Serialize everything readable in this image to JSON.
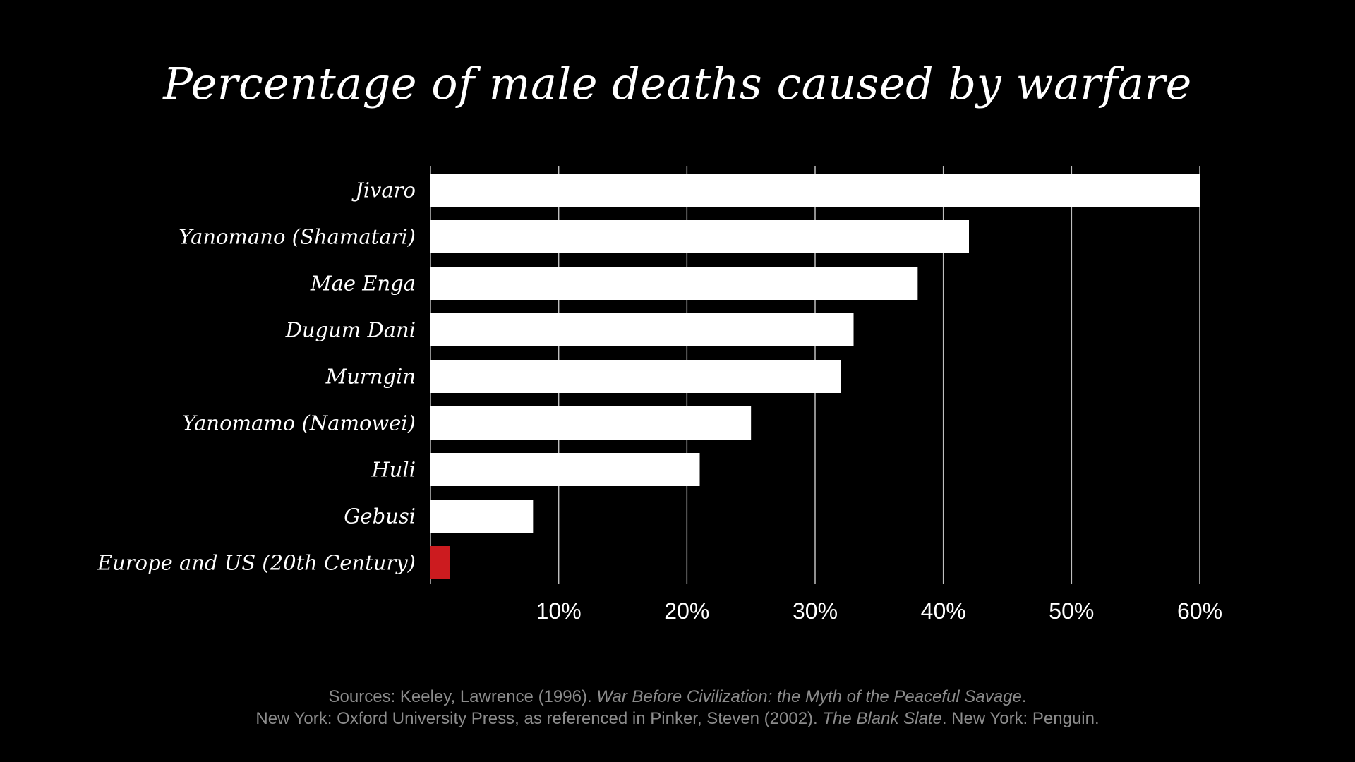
{
  "chart_data": {
    "type": "bar",
    "orientation": "horizontal",
    "title": "Percentage of male deaths caused by warfare",
    "categories": [
      "Jivaro",
      "Yanomano (Shamatari)",
      "Mae Enga",
      "Dugum Dani",
      "Murngin",
      "Yanomamo (Namowei)",
      "Huli",
      "Gebusi",
      "Europe and US (20th Century)"
    ],
    "values": [
      60,
      42,
      38,
      33,
      32,
      25,
      21,
      8,
      1.5
    ],
    "highlight_index": 8,
    "xlabel": "",
    "ylabel": "",
    "xlim": [
      0,
      60
    ],
    "xticks": [
      10,
      20,
      30,
      40,
      50,
      60
    ],
    "tick_labels": [
      "10%",
      "20%",
      "30%",
      "40%",
      "50%",
      "60%"
    ],
    "grid": true,
    "colors": {
      "bar": "#ffffff",
      "highlight": "#cc1b1f",
      "grid": "#bfbfbf",
      "background": "#000000"
    }
  },
  "sources": {
    "line1_prefix": "Sources: Keeley, Lawrence (1996). ",
    "line1_italic": "War Before Civilization: the Myth of the Peaceful Savage",
    "line1_suffix": ".",
    "line2_prefix": "New York: Oxford University Press, as referenced in Pinker, Steven (2002). ",
    "line2_italic": "The Blank Slate",
    "line2_suffix": ". New York: Penguin."
  }
}
